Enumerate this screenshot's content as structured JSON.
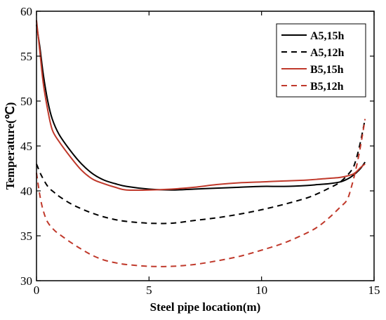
{
  "chart_data": {
    "type": "line",
    "title": "",
    "xlabel": "Steel pipe location(m)",
    "ylabel": "Temperature(℃)",
    "xlim": [
      0,
      15
    ],
    "ylim": [
      30,
      60
    ],
    "xticks": [
      0,
      5,
      10,
      15
    ],
    "yticks": [
      30,
      35,
      40,
      45,
      50,
      55,
      60
    ],
    "grid": false,
    "legend_position": "top-right",
    "series": [
      {
        "name": "A5,15h",
        "color": "#000000",
        "dash": "solid",
        "x": [
          0,
          0.15,
          0.3,
          0.5,
          0.7,
          1.0,
          1.5,
          2.0,
          2.5,
          3.0,
          3.5,
          4.0,
          5.0,
          6.0,
          7.0,
          8.0,
          9.0,
          10.0,
          11.0,
          12.0,
          12.5,
          13.0,
          13.5,
          13.8,
          14.0,
          14.2,
          14.4,
          14.6
        ],
        "y": [
          58.5,
          56.0,
          53.0,
          50.0,
          48.0,
          46.3,
          44.5,
          43.0,
          41.9,
          41.2,
          40.8,
          40.5,
          40.2,
          40.1,
          40.2,
          40.3,
          40.4,
          40.5,
          40.5,
          40.6,
          40.7,
          40.8,
          41.0,
          41.3,
          41.6,
          42.0,
          42.5,
          43.2
        ]
      },
      {
        "name": "A5,12h",
        "color": "#000000",
        "dash": "dashed",
        "x": [
          0,
          0.2,
          0.5,
          0.8,
          1.0,
          1.5,
          2.0,
          2.5,
          3.0,
          3.5,
          4.0,
          5.0,
          6.0,
          7.0,
          8.0,
          9.0,
          10.0,
          11.0,
          12.0,
          12.5,
          13.0,
          13.5,
          14.0,
          14.2,
          14.4,
          14.6
        ],
        "y": [
          43.0,
          41.8,
          40.5,
          39.8,
          39.4,
          38.6,
          38.0,
          37.5,
          37.1,
          36.8,
          36.6,
          36.4,
          36.4,
          36.7,
          37.0,
          37.4,
          37.9,
          38.5,
          39.2,
          39.7,
          40.3,
          41.0,
          42.3,
          43.5,
          45.5,
          48.0
        ]
      },
      {
        "name": "B5,15h",
        "color": "#c0392b",
        "dash": "solid",
        "x": [
          0,
          0.15,
          0.3,
          0.5,
          0.7,
          1.0,
          1.5,
          2.0,
          2.5,
          3.0,
          3.5,
          4.0,
          5.0,
          6.0,
          7.0,
          8.0,
          9.0,
          10.0,
          11.0,
          12.0,
          13.0,
          13.5,
          14.0,
          14.2,
          14.4,
          14.6
        ],
        "y": [
          59.0,
          55.5,
          52.0,
          49.0,
          46.8,
          45.5,
          43.8,
          42.3,
          41.3,
          40.8,
          40.4,
          40.1,
          40.1,
          40.2,
          40.4,
          40.7,
          40.9,
          41.0,
          41.1,
          41.2,
          41.4,
          41.5,
          41.8,
          42.1,
          42.6,
          43.0
        ]
      },
      {
        "name": "B5,12h",
        "color": "#c0392b",
        "dash": "dashed",
        "x": [
          0,
          0.15,
          0.3,
          0.5,
          0.8,
          1.0,
          1.5,
          2.0,
          2.5,
          3.0,
          3.5,
          4.0,
          5.0,
          6.0,
          7.0,
          8.0,
          9.0,
          10.0,
          11.0,
          12.0,
          12.5,
          13.0,
          13.5,
          13.8,
          14.0,
          14.2,
          14.4,
          14.6
        ],
        "y": [
          42.0,
          39.5,
          37.8,
          36.5,
          35.6,
          35.2,
          34.3,
          33.5,
          32.8,
          32.3,
          32.0,
          31.8,
          31.6,
          31.6,
          31.8,
          32.2,
          32.7,
          33.4,
          34.2,
          35.3,
          36.0,
          37.0,
          38.2,
          39.0,
          40.5,
          42.5,
          45.0,
          48.0
        ]
      }
    ]
  }
}
